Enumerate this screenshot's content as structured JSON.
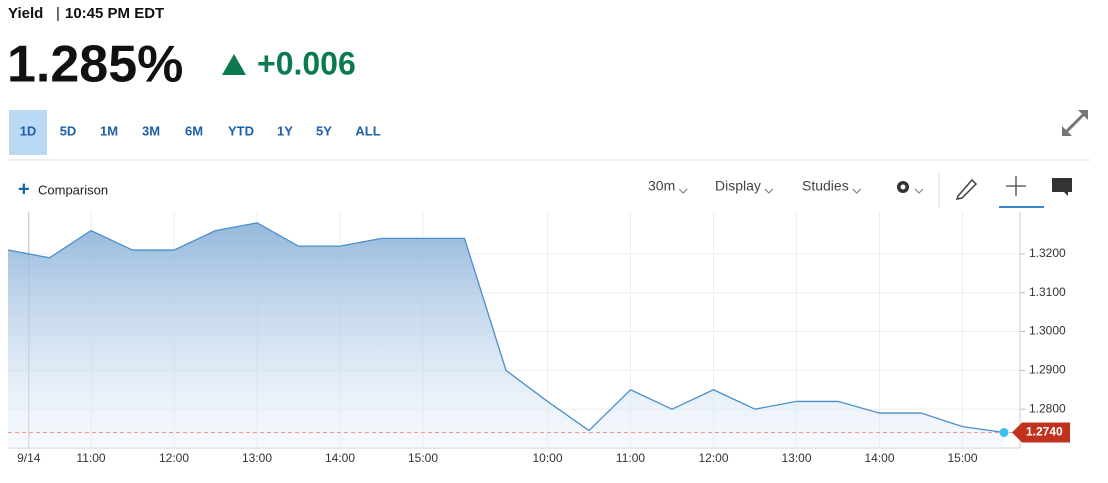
{
  "chart_data": {
    "type": "area",
    "title": "Yield",
    "subtitle": "10:45 PM EDT",
    "value_text": "1.285%",
    "change_text": "+0.006",
    "ranges": [
      "1D",
      "5D",
      "1M",
      "3M",
      "6M",
      "YTD",
      "1Y",
      "5Y",
      "ALL"
    ],
    "active_range_index": 0,
    "comparison": "Comparison",
    "toolbar": [
      "30m",
      "Display",
      "Studies"
    ],
    "categories": [
      null,
      null,
      "11:00",
      null,
      "12:00",
      null,
      "13:00",
      null,
      "14:00",
      null,
      "15:00",
      null,
      null,
      "10:00",
      null,
      "11:00",
      null,
      "12:00",
      null,
      "13:00",
      null,
      "14:00",
      null,
      "15:00",
      null
    ],
    "day_break": "9/14",
    "series": [
      {
        "color": "#4a8fcb",
        "values": [
          1.321,
          1.319,
          1.326,
          1.321,
          1.321,
          1.326,
          1.328,
          1.322,
          1.322,
          1.324,
          1.324,
          1.324,
          1.29,
          1.282,
          1.2745,
          1.285,
          1.28,
          1.285,
          1.28,
          1.282,
          1.282,
          1.279,
          1.279,
          1.2755,
          1.274
        ]
      }
    ],
    "last_value": {
      "value": 1.274,
      "label": "1.2740"
    },
    "ylim": [
      1.27,
      1.3308
    ],
    "yticks": [
      {
        "value": 1.28,
        "label": "1.2800"
      },
      {
        "value": 1.29,
        "label": "1.2900"
      },
      {
        "value": 1.3,
        "label": "1.3000"
      },
      {
        "value": 1.31,
        "label": "1.3100"
      },
      {
        "value": 1.32,
        "label": "1.3200"
      }
    ],
    "grid": true
  }
}
